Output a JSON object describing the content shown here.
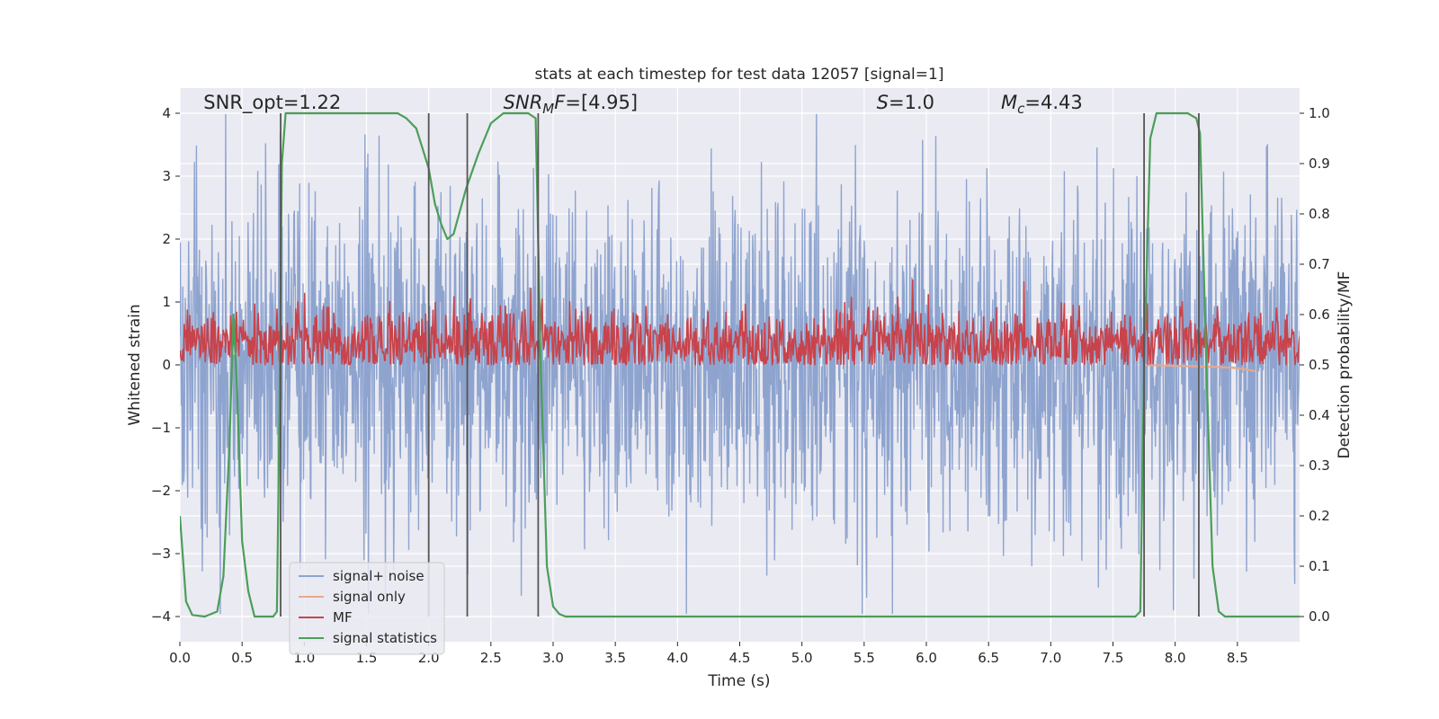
{
  "chart_data": {
    "type": "line",
    "title": "stats at each timestep for test data 12057 [signal=1]",
    "xlabel": "Time (s)",
    "ylabel": "Whitened strain",
    "y2label": "Detection probability/MF",
    "xlim": [
      0.0,
      9.0
    ],
    "ylim": [
      -4.4,
      4.4
    ],
    "y2lim": [
      -0.05,
      1.05
    ],
    "xticks": [
      "0.0",
      "0.5",
      "1.0",
      "1.5",
      "2.0",
      "2.5",
      "3.0",
      "3.5",
      "4.0",
      "4.5",
      "5.0",
      "5.5",
      "6.0",
      "6.5",
      "7.0",
      "7.5",
      "8.0",
      "8.5"
    ],
    "xtick_values": [
      0,
      0.5,
      1,
      1.5,
      2,
      2.5,
      3,
      3.5,
      4,
      4.5,
      5,
      5.5,
      6,
      6.5,
      7,
      7.5,
      8,
      8.5
    ],
    "yticks": [
      "−4",
      "−3",
      "−2",
      "−1",
      "0",
      "1",
      "2",
      "3",
      "4"
    ],
    "ytick_values": [
      -4,
      -3,
      -2,
      -1,
      0,
      1,
      2,
      3,
      4
    ],
    "y2ticks": [
      "0.0",
      "0.1",
      "0.2",
      "0.3",
      "0.4",
      "0.5",
      "0.6",
      "0.7",
      "0.8",
      "0.9",
      "1.0"
    ],
    "y2tick_values": [
      0,
      0.1,
      0.2,
      0.3,
      0.4,
      0.5,
      0.6,
      0.7,
      0.8,
      0.9,
      1.0
    ],
    "grid": true,
    "legend_position": "lower-left",
    "annotations": [
      {
        "name": "snr-opt",
        "x": 0.19,
        "y": 4.1,
        "parts": [
          {
            "t": "SNR_opt=1.22",
            "i": false
          }
        ]
      },
      {
        "name": "snr-mf",
        "x": 2.6,
        "y": 4.1,
        "parts": [
          {
            "t": "SNR",
            "i": true
          },
          {
            "t": "M",
            "i": true,
            "sub": true
          },
          {
            "t": "F",
            "i": true
          },
          {
            "t": "=[4.95]",
            "i": false
          }
        ]
      },
      {
        "name": "s-value",
        "x": 5.6,
        "y": 4.1,
        "parts": [
          {
            "t": "S",
            "i": true
          },
          {
            "t": "=1.0",
            "i": false
          }
        ]
      },
      {
        "name": "mc-value",
        "x": 6.6,
        "y": 4.1,
        "parts": [
          {
            "t": "M",
            "i": true
          },
          {
            "t": "c",
            "i": true,
            "sub": true
          },
          {
            "t": "=4.43",
            "i": false
          }
        ]
      }
    ],
    "vertical_lines": [
      0.81,
      2.0,
      2.31,
      2.88,
      7.75,
      8.19
    ],
    "vlines_yrange": [
      -4.0,
      4.0
    ],
    "series": [
      {
        "name": "signal+ noise",
        "axis": "left",
        "color": "#8ea4cf",
        "kind": "noise",
        "t_range": [
          0.0,
          9.0
        ],
        "samples": 2300,
        "amplitude_sigma": 1.35,
        "extremes": [
          -3.95,
          3.98
        ]
      },
      {
        "name": "signal only",
        "axis": "left",
        "color": "#e8a88c",
        "kind": "line",
        "x": [
          7.75,
          7.9,
          8.1,
          8.3,
          8.5,
          8.65
        ],
        "y": [
          0.0,
          -0.01,
          -0.02,
          -0.03,
          -0.05,
          -0.1
        ]
      },
      {
        "name": "MF",
        "axis": "right",
        "color": "#c8434b",
        "kind": "mf-noise",
        "t_range": [
          0.0,
          9.0
        ],
        "samples": 1500,
        "baseline": 0.5,
        "mean": 0.545,
        "spread": 0.035,
        "peaks": [
          [
            0.95,
            0.625
          ],
          [
            2.75,
            0.605
          ],
          [
            3.3,
            0.6
          ],
          [
            5.85,
            0.59
          ],
          [
            8.0,
            0.595
          ]
        ]
      },
      {
        "name": "signal statistics",
        "axis": "right",
        "color": "#4c9e58",
        "kind": "line",
        "x": [
          0.0,
          0.05,
          0.1,
          0.2,
          0.3,
          0.35,
          0.4,
          0.43,
          0.46,
          0.5,
          0.55,
          0.6,
          0.7,
          0.75,
          0.78,
          0.8,
          0.82,
          0.85,
          0.88,
          0.9,
          1.0,
          1.5,
          1.75,
          1.82,
          1.9,
          1.95,
          2.0,
          2.05,
          2.1,
          2.15,
          2.2,
          2.3,
          2.4,
          2.45,
          2.5,
          2.6,
          2.8,
          2.86,
          2.9,
          2.95,
          3.0,
          3.05,
          3.1,
          3.2,
          4.0,
          5.0,
          6.0,
          7.0,
          7.5,
          7.68,
          7.72,
          7.75,
          7.8,
          7.85,
          7.9,
          8.1,
          8.17,
          8.2,
          8.25,
          8.3,
          8.35,
          8.4,
          9.0
        ],
        "y": [
          0.2,
          0.03,
          0.003,
          0.0,
          0.01,
          0.08,
          0.35,
          0.6,
          0.45,
          0.15,
          0.05,
          0.0,
          0.0,
          0.0,
          0.01,
          0.4,
          0.9,
          1.0,
          1.0,
          1.0,
          1.0,
          1.0,
          1.0,
          0.99,
          0.97,
          0.93,
          0.89,
          0.82,
          0.78,
          0.75,
          0.76,
          0.85,
          0.92,
          0.95,
          0.98,
          1.0,
          1.0,
          0.99,
          0.5,
          0.1,
          0.02,
          0.005,
          0.0,
          0.0,
          0.0,
          0.0,
          0.0,
          0.0,
          0.0,
          0.0,
          0.01,
          0.5,
          0.95,
          1.0,
          1.0,
          1.0,
          0.99,
          0.96,
          0.5,
          0.1,
          0.01,
          0.0,
          0.0
        ]
      }
    ]
  }
}
